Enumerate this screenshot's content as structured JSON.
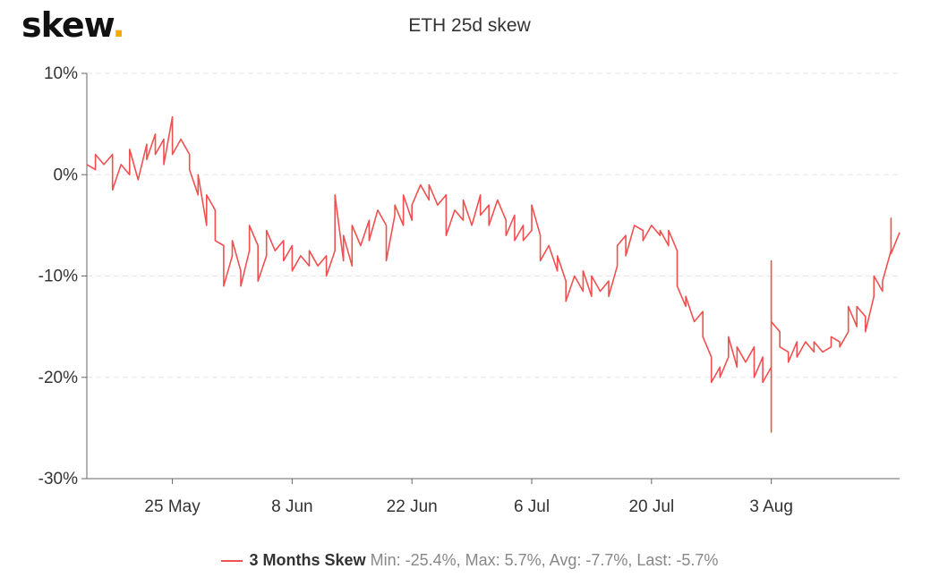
{
  "logo": {
    "text": "skew",
    "dot": ".",
    "dot_color": "#f2a900"
  },
  "chart_data": {
    "type": "line",
    "title": "ETH 25d skew",
    "xlabel": "",
    "ylabel": "",
    "x_range": [
      "2020-05-15",
      "2020-08-18"
    ],
    "ylim": [
      -30,
      10
    ],
    "y_ticks": [
      10,
      0,
      -10,
      -20,
      -30
    ],
    "y_tick_labels": [
      "10%",
      "0%",
      "-10%",
      "-20%",
      "-30%"
    ],
    "x_ticks": [
      "2020-05-25",
      "2020-06-08",
      "2020-06-22",
      "2020-07-06",
      "2020-07-20",
      "2020-08-03"
    ],
    "x_tick_labels": [
      "25 May",
      "8 Jun",
      "22 Jun",
      "6 Jul",
      "20 Jul",
      "3 Aug"
    ],
    "grid": true,
    "legend_position": "bottom",
    "series": [
      {
        "name": "3 Months Skew",
        "color": "#f05050",
        "points": [
          [
            "2020-05-15",
            1.0
          ],
          [
            "2020-05-16",
            0.5
          ],
          [
            "2020-05-16",
            2.0
          ],
          [
            "2020-05-17",
            1.0
          ],
          [
            "2020-05-18",
            2.0
          ],
          [
            "2020-05-18",
            -1.5
          ],
          [
            "2020-05-19",
            1.0
          ],
          [
            "2020-05-20",
            0.0
          ],
          [
            "2020-05-20",
            2.5
          ],
          [
            "2020-05-21",
            -0.5
          ],
          [
            "2020-05-22",
            3.0
          ],
          [
            "2020-05-22",
            1.5
          ],
          [
            "2020-05-23",
            4.0
          ],
          [
            "2020-05-23",
            2.0
          ],
          [
            "2020-05-24",
            3.5
          ],
          [
            "2020-05-24",
            1.0
          ],
          [
            "2020-05-25",
            5.7
          ],
          [
            "2020-05-25",
            2.0
          ],
          [
            "2020-05-26",
            3.5
          ],
          [
            "2020-05-27",
            2.0
          ],
          [
            "2020-05-27",
            0.5
          ],
          [
            "2020-05-28",
            -2.0
          ],
          [
            "2020-05-28",
            0.0
          ],
          [
            "2020-05-29",
            -5.0
          ],
          [
            "2020-05-29",
            -2.0
          ],
          [
            "2020-05-30",
            -3.5
          ],
          [
            "2020-05-30",
            -6.5
          ],
          [
            "2020-05-31",
            -7.0
          ],
          [
            "2020-05-31",
            -11.0
          ],
          [
            "2020-06-01",
            -8.0
          ],
          [
            "2020-06-01",
            -6.5
          ],
          [
            "2020-06-02",
            -9.5
          ],
          [
            "2020-06-02",
            -11.0
          ],
          [
            "2020-06-03",
            -7.5
          ],
          [
            "2020-06-03",
            -5.0
          ],
          [
            "2020-06-04",
            -7.0
          ],
          [
            "2020-06-04",
            -10.5
          ],
          [
            "2020-06-05",
            -8.0
          ],
          [
            "2020-06-05",
            -5.5
          ],
          [
            "2020-06-06",
            -7.5
          ],
          [
            "2020-06-07",
            -6.5
          ],
          [
            "2020-06-07",
            -8.5
          ],
          [
            "2020-06-08",
            -7.0
          ],
          [
            "2020-06-08",
            -9.5
          ],
          [
            "2020-06-09",
            -8.0
          ],
          [
            "2020-06-10",
            -9.0
          ],
          [
            "2020-06-10",
            -7.5
          ],
          [
            "2020-06-11",
            -9.0
          ],
          [
            "2020-06-12",
            -8.0
          ],
          [
            "2020-06-12",
            -10.0
          ],
          [
            "2020-06-13",
            -7.5
          ],
          [
            "2020-06-13",
            -2.0
          ],
          [
            "2020-06-14",
            -8.5
          ],
          [
            "2020-06-14",
            -6.0
          ],
          [
            "2020-06-15",
            -9.0
          ],
          [
            "2020-06-15",
            -5.0
          ],
          [
            "2020-06-16",
            -7.0
          ],
          [
            "2020-06-17",
            -4.5
          ],
          [
            "2020-06-17",
            -6.5
          ],
          [
            "2020-06-18",
            -3.5
          ],
          [
            "2020-06-19",
            -5.0
          ],
          [
            "2020-06-19",
            -8.5
          ],
          [
            "2020-06-20",
            -4.0
          ],
          [
            "2020-06-20",
            -3.0
          ],
          [
            "2020-06-21",
            -5.0
          ],
          [
            "2020-06-21",
            -2.0
          ],
          [
            "2020-06-22",
            -4.5
          ],
          [
            "2020-06-22",
            -3.0
          ],
          [
            "2020-06-23",
            -1.0
          ],
          [
            "2020-06-24",
            -2.5
          ],
          [
            "2020-06-24",
            -1.0
          ],
          [
            "2020-06-25",
            -3.0
          ],
          [
            "2020-06-26",
            -2.0
          ],
          [
            "2020-06-26",
            -6.0
          ],
          [
            "2020-06-27",
            -3.5
          ],
          [
            "2020-06-28",
            -4.5
          ],
          [
            "2020-06-28",
            -2.5
          ],
          [
            "2020-06-29",
            -5.0
          ],
          [
            "2020-06-30",
            -2.0
          ],
          [
            "2020-06-30",
            -4.0
          ],
          [
            "2020-07-01",
            -3.0
          ],
          [
            "2020-07-01",
            -5.0
          ],
          [
            "2020-07-02",
            -2.5
          ],
          [
            "2020-07-03",
            -4.5
          ],
          [
            "2020-07-03",
            -6.0
          ],
          [
            "2020-07-04",
            -4.0
          ],
          [
            "2020-07-04",
            -6.5
          ],
          [
            "2020-07-05",
            -5.0
          ],
          [
            "2020-07-05",
            -6.5
          ],
          [
            "2020-07-06",
            -5.5
          ],
          [
            "2020-07-06",
            -3.0
          ],
          [
            "2020-07-07",
            -6.0
          ],
          [
            "2020-07-07",
            -8.5
          ],
          [
            "2020-07-08",
            -7.0
          ],
          [
            "2020-07-09",
            -9.5
          ],
          [
            "2020-07-09",
            -8.0
          ],
          [
            "2020-07-10",
            -10.5
          ],
          [
            "2020-07-10",
            -12.5
          ],
          [
            "2020-07-11",
            -10.0
          ],
          [
            "2020-07-12",
            -11.5
          ],
          [
            "2020-07-12",
            -9.5
          ],
          [
            "2020-07-13",
            -12.0
          ],
          [
            "2020-07-13",
            -10.0
          ],
          [
            "2020-07-14",
            -11.5
          ],
          [
            "2020-07-15",
            -10.5
          ],
          [
            "2020-07-15",
            -12.0
          ],
          [
            "2020-07-16",
            -9.0
          ],
          [
            "2020-07-16",
            -7.0
          ],
          [
            "2020-07-17",
            -6.0
          ],
          [
            "2020-07-17",
            -8.0
          ],
          [
            "2020-07-18",
            -5.0
          ],
          [
            "2020-07-19",
            -5.5
          ],
          [
            "2020-07-19",
            -6.5
          ],
          [
            "2020-07-20",
            -5.0
          ],
          [
            "2020-07-21",
            -6.0
          ],
          [
            "2020-07-21",
            -5.5
          ],
          [
            "2020-07-22",
            -7.0
          ],
          [
            "2020-07-22",
            -5.5
          ],
          [
            "2020-07-23",
            -7.5
          ],
          [
            "2020-07-23",
            -11.0
          ],
          [
            "2020-07-24",
            -13.0
          ],
          [
            "2020-07-24",
            -12.0
          ],
          [
            "2020-07-25",
            -14.5
          ],
          [
            "2020-07-26",
            -13.5
          ],
          [
            "2020-07-26",
            -16.0
          ],
          [
            "2020-07-27",
            -18.0
          ],
          [
            "2020-07-27",
            -20.5
          ],
          [
            "2020-07-28",
            -19.0
          ],
          [
            "2020-07-28",
            -20.0
          ],
          [
            "2020-07-29",
            -18.0
          ],
          [
            "2020-07-29",
            -16.0
          ],
          [
            "2020-07-30",
            -19.0
          ],
          [
            "2020-07-30",
            -17.0
          ],
          [
            "2020-07-31",
            -18.5
          ],
          [
            "2020-08-01",
            -17.0
          ],
          [
            "2020-08-01",
            -20.0
          ],
          [
            "2020-08-02",
            -18.0
          ],
          [
            "2020-08-02",
            -20.5
          ],
          [
            "2020-08-03",
            -19.0
          ],
          [
            "2020-08-03",
            -8.5
          ],
          [
            "2020-08-03",
            -25.4
          ],
          [
            "2020-08-03",
            -14.5
          ],
          [
            "2020-08-04",
            -15.5
          ],
          [
            "2020-08-04",
            -17.0
          ],
          [
            "2020-08-05",
            -17.5
          ],
          [
            "2020-08-05",
            -18.5
          ],
          [
            "2020-08-06",
            -16.5
          ],
          [
            "2020-08-06",
            -18.0
          ],
          [
            "2020-08-07",
            -16.5
          ],
          [
            "2020-08-08",
            -17.5
          ],
          [
            "2020-08-08",
            -16.5
          ],
          [
            "2020-08-09",
            -17.5
          ],
          [
            "2020-08-10",
            -17.0
          ],
          [
            "2020-08-10",
            -16.0
          ],
          [
            "2020-08-11",
            -16.5
          ],
          [
            "2020-08-11",
            -17.0
          ],
          [
            "2020-08-12",
            -15.5
          ],
          [
            "2020-08-12",
            -13.0
          ],
          [
            "2020-08-13",
            -15.0
          ],
          [
            "2020-08-13",
            -13.0
          ],
          [
            "2020-08-14",
            -14.0
          ],
          [
            "2020-08-14",
            -15.5
          ],
          [
            "2020-08-15",
            -12.0
          ],
          [
            "2020-08-15",
            -10.0
          ],
          [
            "2020-08-16",
            -11.5
          ],
          [
            "2020-08-16",
            -10.5
          ],
          [
            "2020-08-17",
            -7.5
          ],
          [
            "2020-08-17",
            -4.3
          ],
          [
            "2020-08-17",
            -7.8
          ],
          [
            "2020-08-18",
            -5.7
          ]
        ]
      }
    ]
  },
  "legend": {
    "name": "3 Months Skew",
    "stats": "Min: -25.4%, Max: 5.7%, Avg: -7.7%, Last: -5.7%"
  }
}
